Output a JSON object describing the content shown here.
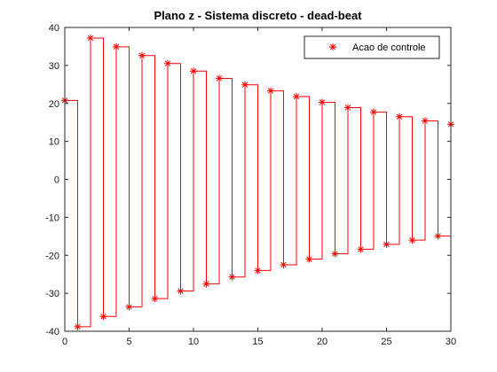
{
  "chart_data": {
    "type": "line",
    "title": "Plano z - Sistema discreto - dead-beat",
    "xlabel": "",
    "ylabel": "",
    "xlim": [
      0,
      30
    ],
    "ylim": [
      -40,
      40
    ],
    "xticks": [
      0,
      5,
      10,
      15,
      20,
      25,
      30
    ],
    "yticks": [
      -40,
      -30,
      -20,
      -10,
      0,
      10,
      20,
      30,
      40
    ],
    "grid": false,
    "legend_position": "top-right",
    "series": [
      {
        "name": "Acao de controle",
        "style": "stairs-with-markers",
        "marker": "asterisk",
        "color": "#ff0000",
        "x": [
          0,
          1,
          2,
          3,
          4,
          5,
          6,
          7,
          8,
          9,
          10,
          11,
          12,
          13,
          14,
          15,
          16,
          17,
          18,
          19,
          20,
          21,
          22,
          23,
          24,
          25,
          26,
          27,
          28,
          29,
          30
        ],
        "values": [
          20.8,
          -38.8,
          37.2,
          -36.1,
          34.9,
          -33.6,
          32.6,
          -31.4,
          30.5,
          -29.4,
          28.5,
          -27.5,
          26.6,
          -25.7,
          24.9,
          -24.0,
          23.3,
          -22.5,
          21.8,
          -21.0,
          20.3,
          -19.6,
          18.9,
          -18.4,
          17.7,
          -17.1,
          16.5,
          -16.0,
          15.4,
          -14.9,
          14.5
        ]
      }
    ]
  }
}
